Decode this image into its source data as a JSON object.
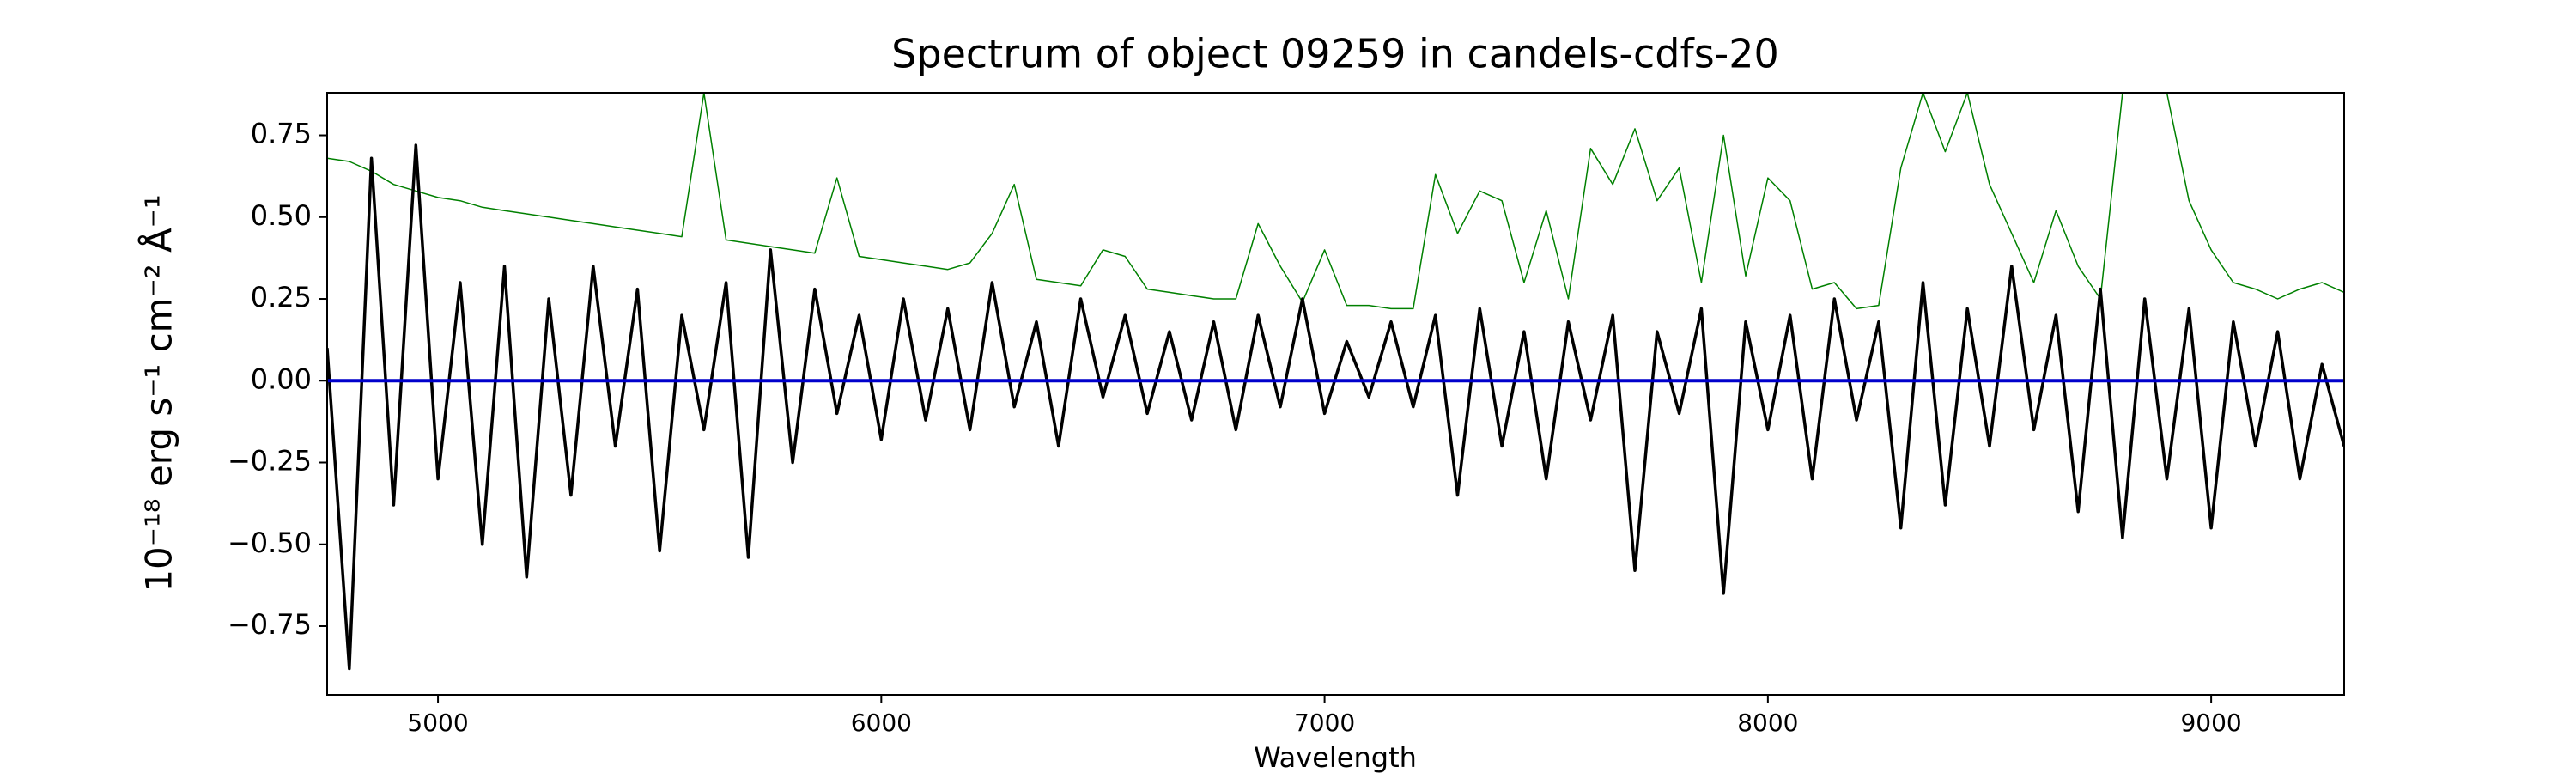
{
  "chart_data": {
    "type": "line",
    "title": "Spectrum of object 09259 in candels-cdfs-20",
    "xlabel": "Wavelength",
    "ylabel": "10⁻¹⁸ erg s⁻¹ cm⁻² Å⁻¹",
    "x": [
      4750,
      4800,
      4850,
      4900,
      4950,
      5000,
      5050,
      5100,
      5150,
      5200,
      5250,
      5300,
      5350,
      5400,
      5450,
      5500,
      5550,
      5600,
      5650,
      5700,
      5750,
      5800,
      5850,
      5900,
      5950,
      6000,
      6050,
      6100,
      6150,
      6200,
      6250,
      6300,
      6350,
      6400,
      6450,
      6500,
      6550,
      6600,
      6650,
      6700,
      6750,
      6800,
      6850,
      6900,
      6950,
      7000,
      7050,
      7100,
      7150,
      7200,
      7250,
      7300,
      7350,
      7400,
      7450,
      7500,
      7550,
      7600,
      7650,
      7700,
      7750,
      7800,
      7850,
      7900,
      7950,
      8000,
      8050,
      8100,
      8150,
      8200,
      8250,
      8300,
      8350,
      8400,
      8450,
      8500,
      8550,
      8600,
      8650,
      8700,
      8750,
      8800,
      8850,
      8900,
      8950,
      9000,
      9050,
      9100,
      9150,
      9200,
      9250,
      9300
    ],
    "series": [
      {
        "color": "#008000",
        "values": [
          0.68,
          0.67,
          0.64,
          0.6,
          0.58,
          0.56,
          0.55,
          0.53,
          0.52,
          0.51,
          0.5,
          0.49,
          0.48,
          0.47,
          0.46,
          0.45,
          0.44,
          0.88,
          0.43,
          0.42,
          0.41,
          0.4,
          0.39,
          0.62,
          0.38,
          0.37,
          0.36,
          0.35,
          0.34,
          0.36,
          0.45,
          0.6,
          0.31,
          0.3,
          0.29,
          0.4,
          0.38,
          0.28,
          0.27,
          0.26,
          0.25,
          0.25,
          0.48,
          0.35,
          0.24,
          0.4,
          0.23,
          0.23,
          0.22,
          0.22,
          0.63,
          0.45,
          0.58,
          0.55,
          0.3,
          0.52,
          0.25,
          0.71,
          0.6,
          0.77,
          0.55,
          0.65,
          0.3,
          0.75,
          0.32,
          0.62,
          0.55,
          0.28,
          0.3,
          0.22,
          0.23,
          0.65,
          0.88,
          0.7,
          0.88,
          0.6,
          0.45,
          0.3,
          0.52,
          0.35,
          0.25,
          0.88,
          0.88,
          0.88,
          0.55,
          0.4,
          0.3,
          0.28,
          0.25,
          0.28,
          0.3,
          0.27
        ]
      },
      {
        "color": "#000000",
        "values": [
          0.1,
          -0.88,
          0.68,
          -0.38,
          0.72,
          -0.3,
          0.3,
          -0.5,
          0.35,
          -0.6,
          0.25,
          -0.35,
          0.35,
          -0.2,
          0.28,
          -0.52,
          0.2,
          -0.15,
          0.3,
          -0.54,
          0.4,
          -0.25,
          0.28,
          -0.1,
          0.2,
          -0.18,
          0.25,
          -0.12,
          0.22,
          -0.15,
          0.3,
          -0.08,
          0.18,
          -0.2,
          0.25,
          -0.05,
          0.2,
          -0.1,
          0.15,
          -0.12,
          0.18,
          -0.15,
          0.2,
          -0.08,
          0.25,
          -0.1,
          0.12,
          -0.05,
          0.18,
          -0.08,
          0.2,
          -0.35,
          0.22,
          -0.2,
          0.15,
          -0.3,
          0.18,
          -0.12,
          0.2,
          -0.58,
          0.15,
          -0.1,
          0.22,
          -0.65,
          0.18,
          -0.15,
          0.2,
          -0.3,
          0.25,
          -0.12,
          0.18,
          -0.45,
          0.3,
          -0.38,
          0.22,
          -0.2,
          0.35,
          -0.15,
          0.2,
          -0.4,
          0.28,
          -0.48,
          0.25,
          -0.3,
          0.22,
          -0.45,
          0.18,
          -0.2,
          0.15,
          -0.3,
          0.05,
          -0.2
        ]
      },
      {
        "color": "#0000cc",
        "values": [
          0,
          0,
          0,
          0,
          0,
          0,
          0,
          0,
          0,
          0,
          0,
          0,
          0,
          0,
          0,
          0,
          0,
          0,
          0,
          0,
          0,
          0,
          0,
          0,
          0,
          0,
          0,
          0,
          0,
          0,
          0,
          0,
          0,
          0,
          0,
          0,
          0,
          0,
          0,
          0,
          0,
          0,
          0,
          0,
          0,
          0,
          0,
          0,
          0,
          0,
          0,
          0,
          0,
          0,
          0,
          0,
          0,
          0,
          0,
          0,
          0,
          0,
          0,
          0,
          0,
          0,
          0,
          0,
          0,
          0,
          0,
          0,
          0,
          0,
          0,
          0,
          0,
          0,
          0,
          0,
          0,
          0,
          0,
          0,
          0,
          0,
          0,
          0,
          0,
          0,
          0,
          0
        ]
      }
    ],
    "xlim": [
      4750,
      9300
    ],
    "ylim": [
      -0.96,
      0.88
    ],
    "xticks": [
      5000,
      6000,
      7000,
      8000,
      9000
    ],
    "yticks": [
      {
        "value": -0.75,
        "label": "−0.75"
      },
      {
        "value": -0.5,
        "label": "−0.50"
      },
      {
        "value": -0.25,
        "label": "−0.25"
      },
      {
        "value": 0,
        "label": "0.00"
      },
      {
        "value": 0.25,
        "label": "0.25"
      },
      {
        "value": 0.5,
        "label": "0.50"
      },
      {
        "value": 0.75,
        "label": "0.75"
      }
    ]
  }
}
